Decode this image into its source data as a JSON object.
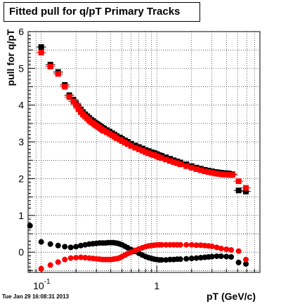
{
  "title": "Fitted pull for q/pT  Primary Tracks",
  "timestamp": "Tue Jan 29 16:08:31 2013",
  "colors": {
    "series1": "#000000",
    "series2": "#ff0000",
    "grid": "#000000"
  },
  "chart_data": {
    "type": "scatter",
    "title": "Fitted pull for q/pT  Primary Tracks",
    "xlabel": "pT (GeV/c)",
    "ylabel": "pull for q/pT",
    "xscale": "log",
    "xlim": [
      0.077,
      7.8
    ],
    "ylim": [
      -0.55,
      6
    ],
    "grid": true,
    "x_tick_labels": [
      {
        "value": 0.1,
        "base": "10",
        "exp": "-1"
      },
      {
        "value": 1,
        "label": "1"
      }
    ],
    "y_ticks": [
      0,
      1,
      2,
      3,
      4,
      5,
      6
    ],
    "series": [
      {
        "color": "#000000",
        "marker": "square",
        "x": [
          0.1,
          0.12,
          0.14,
          0.16,
          0.175,
          0.19,
          0.2,
          0.21,
          0.22,
          0.23,
          0.24,
          0.25,
          0.26,
          0.27,
          0.28,
          0.29,
          0.3,
          0.31,
          0.32,
          0.33,
          0.34,
          0.35,
          0.37,
          0.39,
          0.41,
          0.43,
          0.45,
          0.48,
          0.5,
          0.53,
          0.56,
          0.6,
          0.65,
          0.7,
          0.75,
          0.8,
          0.85,
          0.9,
          0.95,
          1.0,
          1.05,
          1.1,
          1.2,
          1.3,
          1.4,
          1.5,
          1.6,
          1.8,
          2.0,
          2.2,
          2.4,
          2.6,
          2.8,
          3.0,
          3.2,
          3.4,
          3.6,
          3.8,
          4.0,
          4.2,
          4.5,
          5.1,
          5.9
        ],
        "y": [
          5.58,
          5.1,
          4.9,
          4.55,
          4.27,
          4.15,
          4.05,
          3.95,
          3.88,
          3.8,
          3.75,
          3.7,
          3.65,
          3.6,
          3.57,
          3.53,
          3.5,
          3.47,
          3.44,
          3.41,
          3.38,
          3.36,
          3.32,
          3.28,
          3.24,
          3.2,
          3.16,
          3.12,
          3.08,
          3.04,
          3.0,
          2.95,
          2.9,
          2.86,
          2.82,
          2.78,
          2.75,
          2.72,
          2.7,
          2.67,
          2.64,
          2.62,
          2.58,
          2.54,
          2.5,
          2.47,
          2.44,
          2.39,
          2.34,
          2.3,
          2.27,
          2.24,
          2.22,
          2.2,
          2.18,
          2.17,
          2.16,
          2.15,
          2.15,
          2.14,
          2.12,
          1.68,
          1.65
        ]
      },
      {
        "color": "#ff0000",
        "marker": "square",
        "x": [
          0.1,
          0.12,
          0.14,
          0.16,
          0.175,
          0.19,
          0.2,
          0.21,
          0.22,
          0.23,
          0.24,
          0.25,
          0.26,
          0.27,
          0.28,
          0.29,
          0.3,
          0.31,
          0.32,
          0.33,
          0.34,
          0.35,
          0.37,
          0.39,
          0.41,
          0.43,
          0.45,
          0.48,
          0.5,
          0.53,
          0.56,
          0.6,
          0.65,
          0.7,
          0.75,
          0.8,
          0.85,
          0.9,
          0.95,
          1.0,
          1.05,
          1.1,
          1.2,
          1.3,
          1.4,
          1.5,
          1.6,
          1.8,
          2.0,
          2.2,
          2.4,
          2.6,
          2.8,
          3.0,
          3.2,
          3.4,
          3.6,
          3.8,
          4.0,
          4.2,
          4.5,
          5.1,
          5.9
        ],
        "y": [
          5.43,
          5.05,
          4.85,
          4.5,
          4.22,
          4.1,
          4.0,
          3.9,
          3.82,
          3.74,
          3.69,
          3.64,
          3.59,
          3.54,
          3.51,
          3.47,
          3.44,
          3.41,
          3.38,
          3.35,
          3.32,
          3.3,
          3.26,
          3.22,
          3.18,
          3.14,
          3.1,
          3.06,
          3.02,
          2.98,
          2.94,
          2.89,
          2.84,
          2.8,
          2.76,
          2.72,
          2.69,
          2.66,
          2.64,
          2.61,
          2.58,
          2.56,
          2.52,
          2.48,
          2.45,
          2.42,
          2.39,
          2.34,
          2.3,
          2.26,
          2.23,
          2.2,
          2.18,
          2.16,
          2.14,
          2.13,
          2.12,
          2.11,
          2.11,
          2.1,
          2.1,
          1.93,
          1.75
        ]
      },
      {
        "color": "#000000",
        "marker": "circle",
        "x": [
          0.08,
          0.1,
          0.12,
          0.14,
          0.16,
          0.18,
          0.2,
          0.22,
          0.24,
          0.26,
          0.28,
          0.3,
          0.32,
          0.34,
          0.36,
          0.38,
          0.4,
          0.42,
          0.44,
          0.46,
          0.48,
          0.5,
          0.53,
          0.56,
          0.6,
          0.65,
          0.7,
          0.75,
          0.8,
          0.85,
          0.9,
          0.95,
          1.0,
          1.05,
          1.1,
          1.2,
          1.3,
          1.4,
          1.5,
          1.6,
          1.8,
          2.0,
          2.2,
          2.4,
          2.6,
          2.8,
          3.0,
          3.3,
          3.6,
          4.0,
          4.4,
          5.1,
          5.9
        ],
        "y": [
          0.72,
          0.28,
          0.22,
          0.18,
          0.15,
          0.13,
          0.15,
          0.18,
          0.2,
          0.22,
          0.23,
          0.24,
          0.25,
          0.25,
          0.25,
          0.26,
          0.26,
          0.26,
          0.25,
          0.24,
          0.22,
          0.2,
          0.16,
          0.12,
          0.07,
          0.02,
          -0.03,
          -0.08,
          -0.12,
          -0.15,
          -0.17,
          -0.19,
          -0.2,
          -0.21,
          -0.21,
          -0.21,
          -0.2,
          -0.2,
          -0.19,
          -0.19,
          -0.18,
          -0.17,
          -0.16,
          -0.15,
          -0.14,
          -0.13,
          -0.12,
          -0.11,
          -0.11,
          -0.12,
          -0.13,
          -0.28,
          -0.32
        ]
      },
      {
        "color": "#ff0000",
        "marker": "circle",
        "x": [
          0.1,
          0.12,
          0.14,
          0.16,
          0.18,
          0.2,
          0.22,
          0.24,
          0.26,
          0.28,
          0.3,
          0.32,
          0.34,
          0.36,
          0.38,
          0.4,
          0.42,
          0.44,
          0.46,
          0.48,
          0.5,
          0.53,
          0.56,
          0.6,
          0.65,
          0.7,
          0.75,
          0.8,
          0.85,
          0.9,
          0.95,
          1.0,
          1.05,
          1.1,
          1.2,
          1.3,
          1.4,
          1.5,
          1.6,
          1.8,
          2.0,
          2.2,
          2.4,
          2.6,
          2.8,
          3.0,
          3.3,
          3.6,
          4.0,
          4.4,
          5.1,
          5.9
        ],
        "y": [
          -0.45,
          -0.35,
          -0.27,
          -0.2,
          -0.16,
          -0.15,
          -0.14,
          -0.15,
          -0.16,
          -0.17,
          -0.18,
          -0.19,
          -0.2,
          -0.2,
          -0.2,
          -0.2,
          -0.19,
          -0.18,
          -0.17,
          -0.15,
          -0.12,
          -0.08,
          -0.04,
          0.0,
          0.05,
          0.09,
          0.12,
          0.15,
          0.17,
          0.18,
          0.19,
          0.2,
          0.2,
          0.2,
          0.2,
          0.2,
          0.2,
          0.2,
          0.2,
          0.2,
          0.2,
          0.19,
          0.19,
          0.18,
          0.17,
          0.16,
          0.13,
          0.1,
          0.08,
          0.06,
          0.03,
          -0.2
        ]
      }
    ]
  }
}
